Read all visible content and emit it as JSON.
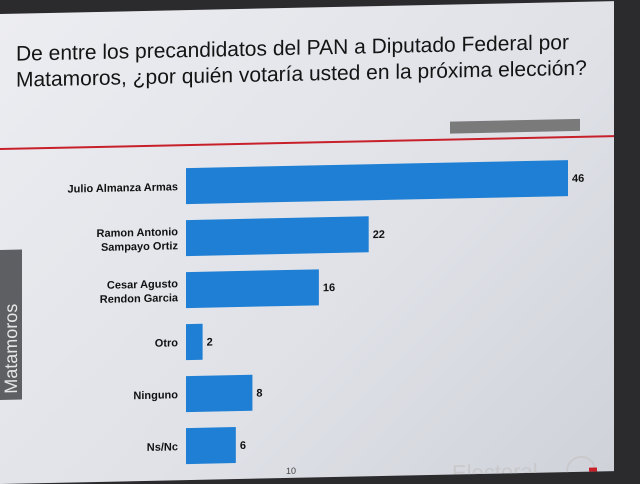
{
  "title": "De entre los precandidatos del PAN a Diputado Federal por Matamoros, ¿por quién votaría usted en la próxima elección?",
  "sidebar_label": "Matamoros",
  "page_number": "10",
  "logo_text": "Electoral",
  "colors": {
    "bar": "#1e7fd4",
    "accent": "#c8202a"
  },
  "chart_data": {
    "type": "bar",
    "orientation": "horizontal",
    "categories": [
      [
        "Julio Almanza Armas"
      ],
      [
        "Ramon Antonio",
        "Sampayo Ortiz"
      ],
      [
        "Cesar Agusto",
        "Rendon Garcia"
      ],
      [
        "Otro"
      ],
      [
        "Ninguno"
      ],
      [
        "Ns/Nc"
      ]
    ],
    "values": [
      46,
      22,
      16,
      2,
      8,
      6
    ],
    "xlim": [
      0,
      46
    ]
  }
}
